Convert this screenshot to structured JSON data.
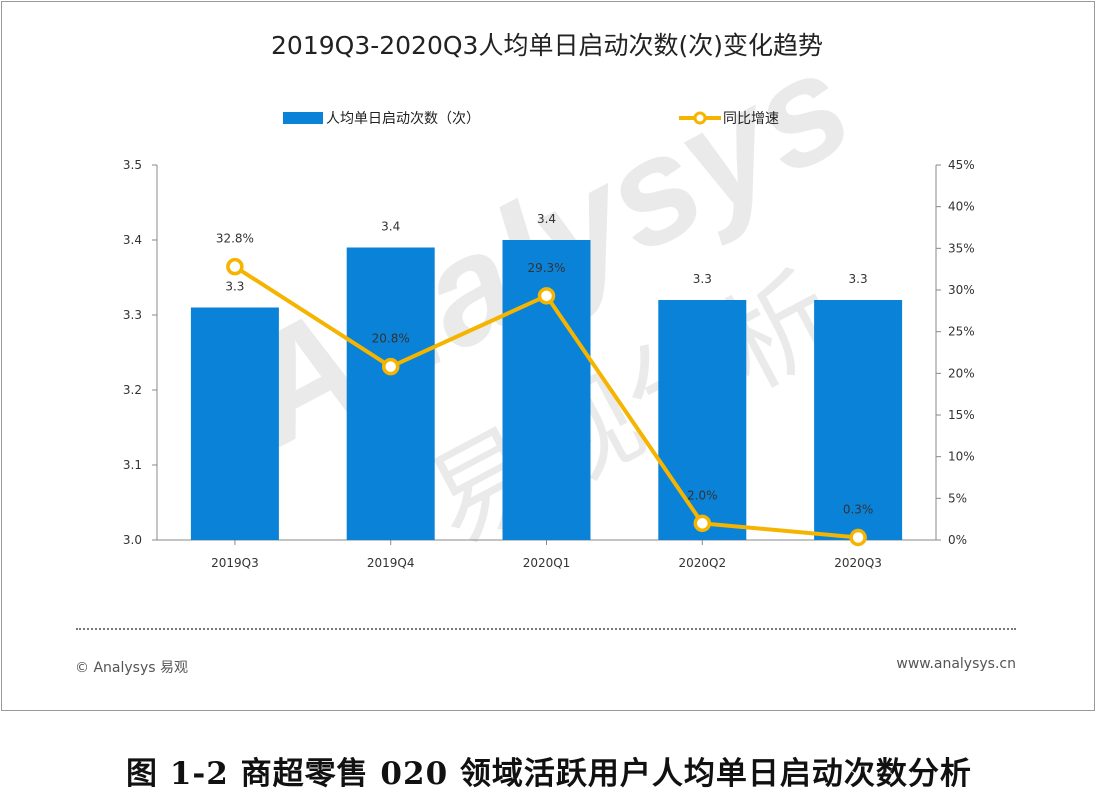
{
  "figure": {
    "caption": "图 1-2 商超零售 020 领域活跃用户人均单日启动次数分析",
    "copyright": "© Analysys 易观",
    "website": "www.analysys.cn",
    "watermark_text": "Analysys",
    "watermark_cn": "易观分析"
  },
  "chart_data": {
    "type": "bar",
    "title": "2019Q3-2020Q3人均单日启动次数(次)变化趋势",
    "categories": [
      "2019Q3",
      "2019Q4",
      "2020Q1",
      "2020Q2",
      "2020Q3"
    ],
    "series": [
      {
        "name": "人均单日启动次数（次）",
        "type": "bar",
        "axis": "left",
        "values": [
          3.31,
          3.39,
          3.4,
          3.32,
          3.32
        ],
        "labels": [
          "3.3",
          "3.4",
          "3.4",
          "3.3",
          "3.3"
        ],
        "color": "#0a82d8"
      },
      {
        "name": "同比增速",
        "type": "line",
        "axis": "right",
        "values": [
          32.8,
          20.8,
          29.3,
          2.0,
          0.3
        ],
        "labels": [
          "32.8%",
          "20.8%",
          "29.3%",
          "2.0%",
          "0.3%"
        ],
        "color": "#f5b400"
      }
    ],
    "y_left": {
      "min": 3.0,
      "max": 3.5,
      "ticks": [
        "3.0",
        "3.1",
        "3.2",
        "3.3",
        "3.4",
        "3.5"
      ]
    },
    "y_right": {
      "min": 0,
      "max": 45,
      "ticks": [
        "0%",
        "5%",
        "10%",
        "15%",
        "20%",
        "25%",
        "30%",
        "35%",
        "40%",
        "45%"
      ]
    },
    "grid": false,
    "legend_position": "top"
  }
}
